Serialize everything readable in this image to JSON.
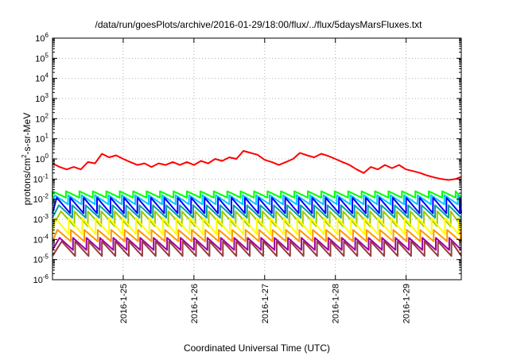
{
  "chart_data": {
    "type": "line",
    "title": "/data/run/goesPlots/archive/2016-01-29/18:00/flux/../flux/5daysMarsFluxes.txt",
    "xlabel": "Coordinated Universal Time (UTC)",
    "ylabel_parts": {
      "base": "protons/cm",
      "sup": "2",
      "rest": "-s-sr-MeV"
    },
    "y_scale": "log",
    "ylim": [
      1e-06,
      1000000.0
    ],
    "y_ticks": [
      {
        "value": 1e-06,
        "base": "10",
        "exp": "-6"
      },
      {
        "value": 1e-05,
        "base": "10",
        "exp": "-5"
      },
      {
        "value": 0.0001,
        "base": "10",
        "exp": "-4"
      },
      {
        "value": 0.001,
        "base": "10",
        "exp": "-3"
      },
      {
        "value": 0.01,
        "base": "10",
        "exp": "-2"
      },
      {
        "value": 0.1,
        "base": "10",
        "exp": "-1"
      },
      {
        "value": 1.0,
        "base": "10",
        "exp": "0"
      },
      {
        "value": 10.0,
        "base": "10",
        "exp": "1"
      },
      {
        "value": 100.0,
        "base": "10",
        "exp": "2"
      },
      {
        "value": 1000.0,
        "base": "10",
        "exp": "3"
      },
      {
        "value": 10000.0,
        "base": "10",
        "exp": "4"
      },
      {
        "value": 100000.0,
        "base": "10",
        "exp": "5"
      },
      {
        "value": 1000000.0,
        "base": "10",
        "exp": "6"
      }
    ],
    "xlim": [
      24.0,
      29.78
    ],
    "x_ticks": [
      {
        "value": 25,
        "label": "2016-1-25"
      },
      {
        "value": 26,
        "label": "2016-1-26"
      },
      {
        "value": 27,
        "label": "2016-1-27"
      },
      {
        "value": 28,
        "label": "2016-1-28"
      },
      {
        "value": 29,
        "label": "2016-1-29"
      }
    ],
    "grid": true,
    "series": [
      {
        "color": "#ff0000",
        "x": [
          24.0,
          24.1,
          24.2,
          24.3,
          24.4,
          24.5,
          24.6,
          24.7,
          24.8,
          24.9,
          25.0,
          25.1,
          25.2,
          25.3,
          25.4,
          25.5,
          25.6,
          25.7,
          25.8,
          25.9,
          26.0,
          26.1,
          26.2,
          26.3,
          26.4,
          26.5,
          26.6,
          26.7,
          26.8,
          26.9,
          27.0,
          27.1,
          27.2,
          27.3,
          27.4,
          27.5,
          27.6,
          27.7,
          27.8,
          27.9,
          28.0,
          28.1,
          28.2,
          28.3,
          28.4,
          28.5,
          28.6,
          28.7,
          28.8,
          28.9,
          29.0,
          29.1,
          29.2,
          29.3,
          29.4,
          29.5,
          29.6,
          29.7,
          29.78
        ],
        "y": [
          0.6,
          0.4,
          0.3,
          0.4,
          0.3,
          0.7,
          0.6,
          1.8,
          1.2,
          1.5,
          1.0,
          0.7,
          0.5,
          0.6,
          0.4,
          0.6,
          0.5,
          0.7,
          0.5,
          0.7,
          0.5,
          0.8,
          0.6,
          1.0,
          0.8,
          1.2,
          1.0,
          2.5,
          2.0,
          1.6,
          0.9,
          0.7,
          0.5,
          0.7,
          1.0,
          2.0,
          1.5,
          1.2,
          1.8,
          1.4,
          1.0,
          0.7,
          0.5,
          0.3,
          0.2,
          0.4,
          0.3,
          0.5,
          0.35,
          0.5,
          0.3,
          0.25,
          0.2,
          0.15,
          0.12,
          0.1,
          0.09,
          0.1,
          0.13
        ]
      },
      {
        "color": "#00ff00",
        "period": 0.19,
        "phase": 0.0,
        "high": 0.025,
        "low": 0.012
      },
      {
        "color": "#00c8ff",
        "period": 0.19,
        "phase": 0.03,
        "high": 0.016,
        "low": 0.0055
      },
      {
        "color": "#0000ff",
        "period": 0.19,
        "phase": 0.06,
        "high": 0.012,
        "low": 0.002
      },
      {
        "color": "#00a0a0",
        "period": 0.19,
        "phase": 0.09,
        "high": 0.005,
        "low": 0.0012
      },
      {
        "color": "#a0c800",
        "period": 0.19,
        "phase": 0.12,
        "high": 0.0025,
        "low": 0.00045
      },
      {
        "color": "#ffff00",
        "period": 0.19,
        "phase": 0.04,
        "high": 0.0012,
        "low": 0.00018
      },
      {
        "color": "#ff9600",
        "period": 0.19,
        "phase": 0.07,
        "high": 0.0003,
        "low": 8e-05
      },
      {
        "color": "#a000a0",
        "period": 0.19,
        "phase": 0.1,
        "high": 0.00012,
        "low": 3e-05
      },
      {
        "color": "#963c3c",
        "period": 0.19,
        "phase": 0.13,
        "high": 8e-05,
        "low": 1.5e-05
      }
    ]
  }
}
